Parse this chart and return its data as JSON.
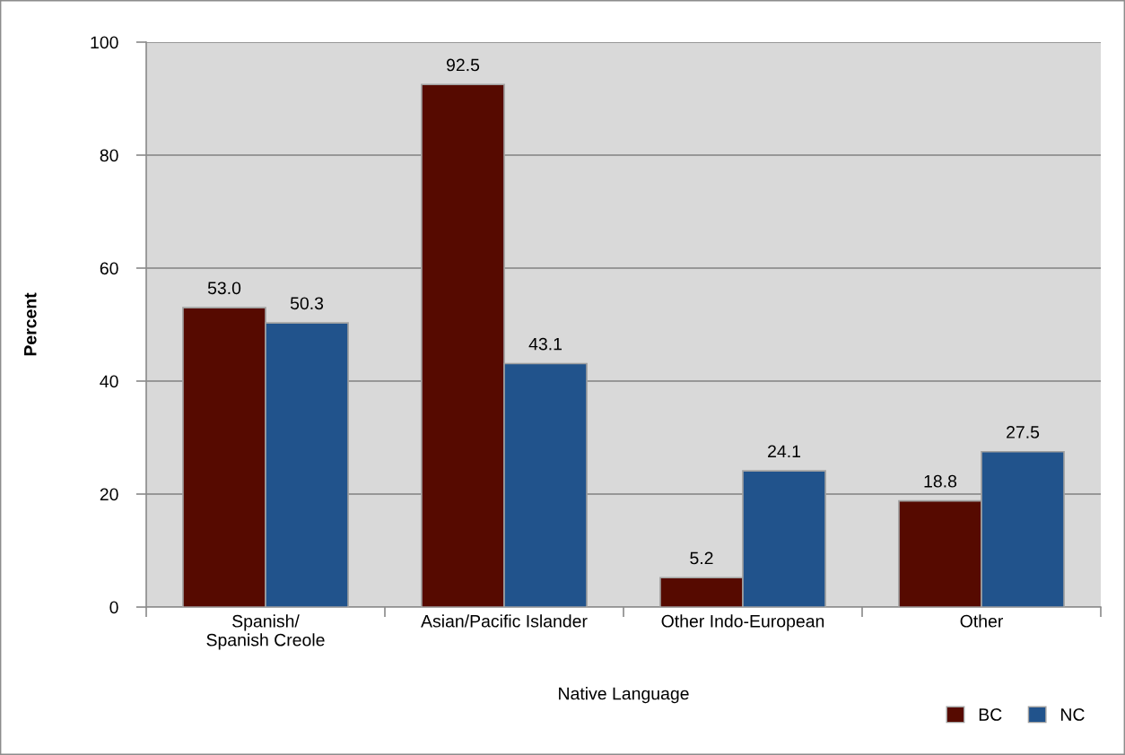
{
  "chart_data": {
    "type": "bar",
    "xlabel": "Native Language",
    "ylabel": "Percent",
    "categories": [
      "Spanish/\nSpanish Creole",
      "Asian/Pacific Islander",
      "Other Indo-European",
      "Other"
    ],
    "series": [
      {
        "name": "BC",
        "color": "#560a00",
        "values": [
          53.0,
          92.5,
          5.2,
          18.8
        ],
        "value_labels": [
          "53.0",
          "92.5",
          "5.2",
          "18.8"
        ]
      },
      {
        "name": "NC",
        "color": "#21538c",
        "values": [
          50.3,
          43.1,
          24.1,
          27.5
        ],
        "value_labels": [
          "50.3",
          "43.1",
          "24.1",
          "27.5"
        ]
      }
    ],
    "ylim": [
      0,
      100
    ],
    "yticks": [
      0,
      20,
      40,
      60,
      80,
      100
    ],
    "grid": "y",
    "legend": "bottom right"
  }
}
